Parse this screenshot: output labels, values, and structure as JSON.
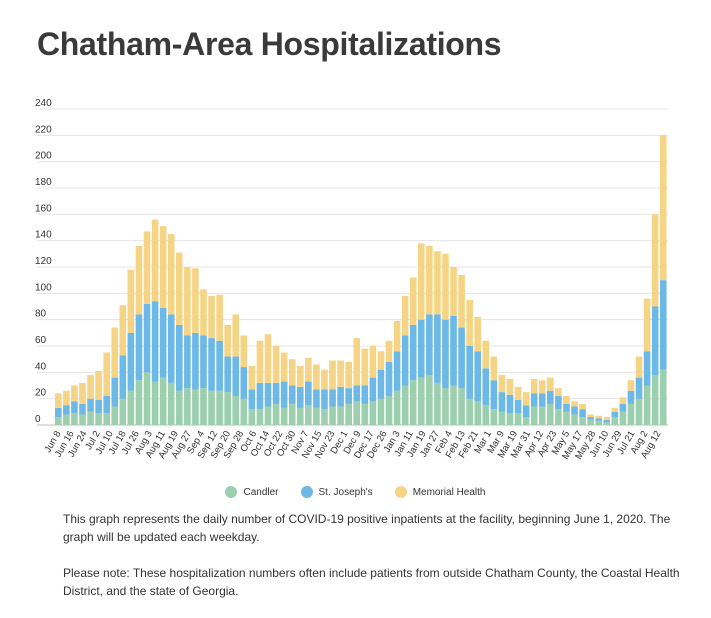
{
  "title": "Chatham-Area Hospitalizations",
  "chart_data": {
    "type": "bar",
    "stacked": true,
    "ylim": [
      0,
      240
    ],
    "y_ticks": [
      0,
      20,
      40,
      60,
      80,
      100,
      120,
      140,
      160,
      180,
      200,
      220,
      240
    ],
    "grid": true,
    "legend_position": "bottom",
    "x_tick_labels": [
      "Jun 8",
      "Jun 16",
      "Jun 24",
      "Jul 2",
      "Jul 10",
      "Jul 18",
      "Jul 26",
      "Aug 3",
      "Aug 11",
      "Aug 19",
      "Aug 27",
      "Sep 4",
      "Sep 12",
      "Sep 20",
      "Sep 28",
      "Oct 6",
      "Oct 14",
      "Oct 22",
      "Oct 30",
      "Nov 7",
      "Nov 15",
      "Nov 23",
      "Dec 1",
      "Dec 9",
      "Dec 17",
      "Dec 26",
      "Jan 3",
      "Jan 11",
      "Jan 19",
      "Jan 27",
      "Feb 4",
      "Feb 13",
      "Feb 21",
      "Mar 1",
      "Mar 9",
      "Mar 19",
      "Mar 31",
      "Apr 12",
      "Apr 23",
      "May 5",
      "May 17",
      "May 28",
      "Jun 10",
      "Jun 29",
      "Jul 21",
      "Aug 2",
      "Aug 12"
    ],
    "series": [
      {
        "name": "Candler",
        "color": "#9ccfae",
        "values": [
          6,
          8,
          9,
          8,
          10,
          9,
          9,
          14,
          20,
          26,
          34,
          40,
          33,
          36,
          32,
          26,
          28,
          27,
          28,
          26,
          26,
          25,
          22,
          20,
          12,
          12,
          14,
          16,
          13,
          16,
          13,
          15,
          13,
          12,
          14,
          14,
          16,
          18,
          16,
          18,
          20,
          22,
          26,
          30,
          34,
          36,
          38,
          32,
          28,
          30,
          28,
          20,
          18,
          15,
          12,
          10,
          9,
          9,
          6,
          14,
          14,
          16,
          12,
          10,
          8,
          6,
          4,
          3,
          2,
          6,
          10,
          16,
          20,
          30,
          38,
          42
        ]
      },
      {
        "name": "St. Joseph's",
        "color": "#6cb8e6",
        "values": [
          7,
          7,
          9,
          8,
          10,
          10,
          13,
          22,
          33,
          44,
          50,
          52,
          61,
          53,
          52,
          50,
          40,
          43,
          40,
          40,
          38,
          27,
          30,
          24,
          15,
          20,
          18,
          16,
          20,
          14,
          16,
          18,
          14,
          15,
          13,
          15,
          12,
          12,
          14,
          18,
          22,
          26,
          30,
          38,
          42,
          44,
          46,
          52,
          52,
          53,
          46,
          40,
          38,
          28,
          22,
          15,
          14,
          10,
          9,
          10,
          10,
          10,
          10,
          6,
          6,
          6,
          2,
          2,
          2,
          4,
          6,
          10,
          16,
          26,
          52,
          68
        ]
      },
      {
        "name": "Memorial Health",
        "color": "#f6d485",
        "values": [
          11,
          11,
          12,
          16,
          18,
          22,
          33,
          38,
          38,
          48,
          52,
          55,
          62,
          62,
          61,
          55,
          52,
          49,
          35,
          32,
          35,
          24,
          32,
          24,
          18,
          32,
          37,
          28,
          22,
          20,
          16,
          18,
          19,
          15,
          22,
          20,
          20,
          36,
          28,
          24,
          14,
          16,
          23,
          30,
          36,
          58,
          52,
          48,
          50,
          37,
          40,
          35,
          26,
          21,
          18,
          13,
          12,
          10,
          10,
          11,
          10,
          10,
          6,
          6,
          4,
          4,
          2,
          2,
          2,
          3,
          5,
          8,
          16,
          40,
          70,
          110
        ]
      }
    ]
  },
  "legend": [
    {
      "label": "Candler",
      "color": "#9ccfae"
    },
    {
      "label": "St. Joseph's",
      "color": "#6cb8e6"
    },
    {
      "label": "Memorial Health",
      "color": "#f6d485"
    }
  ],
  "notes": {
    "p1": "This graph represents the daily number of COVID-19 positive inpatients at the facility, beginning June 1, 2020. The graph will be updated each weekday.",
    "p2": "Please note: These hospitalization numbers often include patients from outside Chatham County, the Coastal Health District, and the state of Georgia."
  }
}
